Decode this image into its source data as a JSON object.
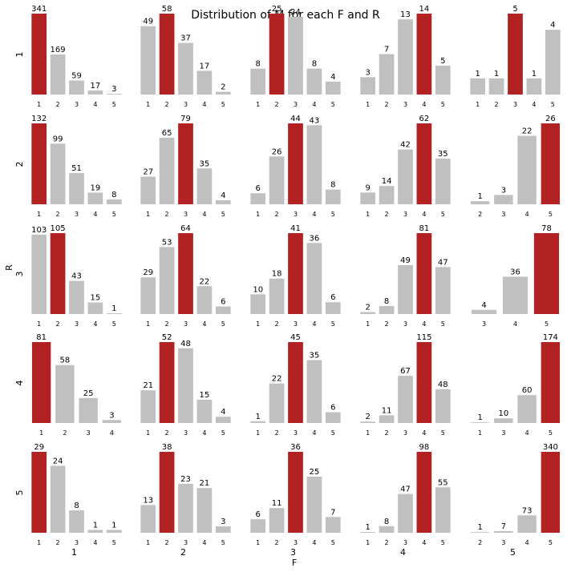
{
  "chart_data": {
    "type": "bar",
    "title": "Distribution of M for each F and R",
    "xlabel": "F",
    "ylabel": "R",
    "col_labels": [
      "1",
      "2",
      "3",
      "4",
      "5"
    ],
    "row_labels": [
      "1",
      "2",
      "3",
      "4",
      "5"
    ],
    "bar_color": "#c0c0c0",
    "highlight_color": "#b22222",
    "facets": [
      {
        "r": "1",
        "f": "1",
        "categories": [
          "1",
          "2",
          "3",
          "4",
          "5"
        ],
        "values": [
          341,
          169,
          59,
          17,
          3
        ],
        "highlight": "1"
      },
      {
        "r": "1",
        "f": "2",
        "categories": [
          "1",
          "2",
          "3",
          "4",
          "5"
        ],
        "values": [
          49,
          58,
          37,
          17,
          2
        ],
        "highlight": "2"
      },
      {
        "r": "1",
        "f": "3",
        "categories": [
          "1",
          "2",
          "3",
          "4",
          "5"
        ],
        "values": [
          8,
          25,
          24,
          8,
          4
        ],
        "highlight": "2"
      },
      {
        "r": "1",
        "f": "4",
        "categories": [
          "1",
          "2",
          "3",
          "4",
          "5"
        ],
        "values": [
          3,
          7,
          13,
          14,
          5
        ],
        "highlight": "4"
      },
      {
        "r": "1",
        "f": "5",
        "categories": [
          "1",
          "2",
          "3",
          "4",
          "5"
        ],
        "values": [
          1,
          1,
          5,
          1,
          4
        ],
        "highlight": "3"
      },
      {
        "r": "2",
        "f": "1",
        "categories": [
          "1",
          "2",
          "3",
          "4",
          "5"
        ],
        "values": [
          132,
          99,
          51,
          19,
          8
        ],
        "highlight": "1"
      },
      {
        "r": "2",
        "f": "2",
        "categories": [
          "1",
          "2",
          "3",
          "4",
          "5"
        ],
        "values": [
          27,
          65,
          79,
          35,
          4
        ],
        "highlight": "3"
      },
      {
        "r": "2",
        "f": "3",
        "categories": [
          "1",
          "2",
          "3",
          "4",
          "5"
        ],
        "values": [
          6,
          26,
          44,
          43,
          8
        ],
        "highlight": "3"
      },
      {
        "r": "2",
        "f": "4",
        "categories": [
          "1",
          "2",
          "3",
          "4",
          "5"
        ],
        "values": [
          9,
          14,
          42,
          62,
          35
        ],
        "highlight": "4"
      },
      {
        "r": "2",
        "f": "5",
        "categories": [
          "2",
          "3",
          "4",
          "5"
        ],
        "values": [
          1,
          3,
          22,
          26
        ],
        "highlight": "5"
      },
      {
        "r": "3",
        "f": "1",
        "categories": [
          "1",
          "2",
          "3",
          "4",
          "5"
        ],
        "values": [
          103,
          105,
          43,
          15,
          1
        ],
        "highlight": "2"
      },
      {
        "r": "3",
        "f": "2",
        "categories": [
          "1",
          "2",
          "3",
          "4",
          "5"
        ],
        "values": [
          29,
          53,
          64,
          22,
          6
        ],
        "highlight": "3"
      },
      {
        "r": "3",
        "f": "3",
        "categories": [
          "1",
          "2",
          "3",
          "4",
          "5"
        ],
        "values": [
          10,
          18,
          41,
          36,
          6
        ],
        "highlight": "3"
      },
      {
        "r": "3",
        "f": "4",
        "categories": [
          "1",
          "2",
          "3",
          "4",
          "5"
        ],
        "values": [
          2,
          8,
          49,
          81,
          47
        ],
        "highlight": "4"
      },
      {
        "r": "3",
        "f": "5",
        "categories": [
          "3",
          "4",
          "5"
        ],
        "values": [
          4,
          36,
          78
        ],
        "highlight": "5"
      },
      {
        "r": "4",
        "f": "1",
        "categories": [
          "1",
          "2",
          "3",
          "4"
        ],
        "values": [
          81,
          58,
          25,
          3
        ],
        "highlight": "1"
      },
      {
        "r": "4",
        "f": "2",
        "categories": [
          "1",
          "2",
          "3",
          "4",
          "5"
        ],
        "values": [
          21,
          52,
          48,
          15,
          4
        ],
        "highlight": "2"
      },
      {
        "r": "4",
        "f": "3",
        "categories": [
          "1",
          "2",
          "3",
          "4",
          "5"
        ],
        "values": [
          1,
          22,
          45,
          35,
          6
        ],
        "highlight": "3"
      },
      {
        "r": "4",
        "f": "4",
        "categories": [
          "1",
          "2",
          "3",
          "4",
          "5"
        ],
        "values": [
          2,
          11,
          67,
          115,
          48
        ],
        "highlight": "4"
      },
      {
        "r": "4",
        "f": "5",
        "categories": [
          "1",
          "3",
          "4",
          "5"
        ],
        "values": [
          1,
          10,
          60,
          174
        ],
        "highlight": "5"
      },
      {
        "r": "5",
        "f": "1",
        "categories": [
          "1",
          "2",
          "3",
          "4",
          "5"
        ],
        "values": [
          29,
          24,
          8,
          1,
          1
        ],
        "highlight": "1"
      },
      {
        "r": "5",
        "f": "2",
        "categories": [
          "1",
          "2",
          "3",
          "4",
          "5"
        ],
        "values": [
          13,
          38,
          23,
          21,
          3
        ],
        "highlight": "2"
      },
      {
        "r": "5",
        "f": "3",
        "categories": [
          "1",
          "2",
          "3",
          "4",
          "5"
        ],
        "values": [
          6,
          11,
          36,
          25,
          7
        ],
        "highlight": "3"
      },
      {
        "r": "5",
        "f": "4",
        "categories": [
          "1",
          "2",
          "3",
          "4",
          "5"
        ],
        "values": [
          1,
          8,
          47,
          98,
          55
        ],
        "highlight": "4"
      },
      {
        "r": "5",
        "f": "5",
        "categories": [
          "2",
          "3",
          "4",
          "5"
        ],
        "values": [
          1,
          7,
          73,
          340
        ],
        "highlight": "5"
      }
    ]
  }
}
